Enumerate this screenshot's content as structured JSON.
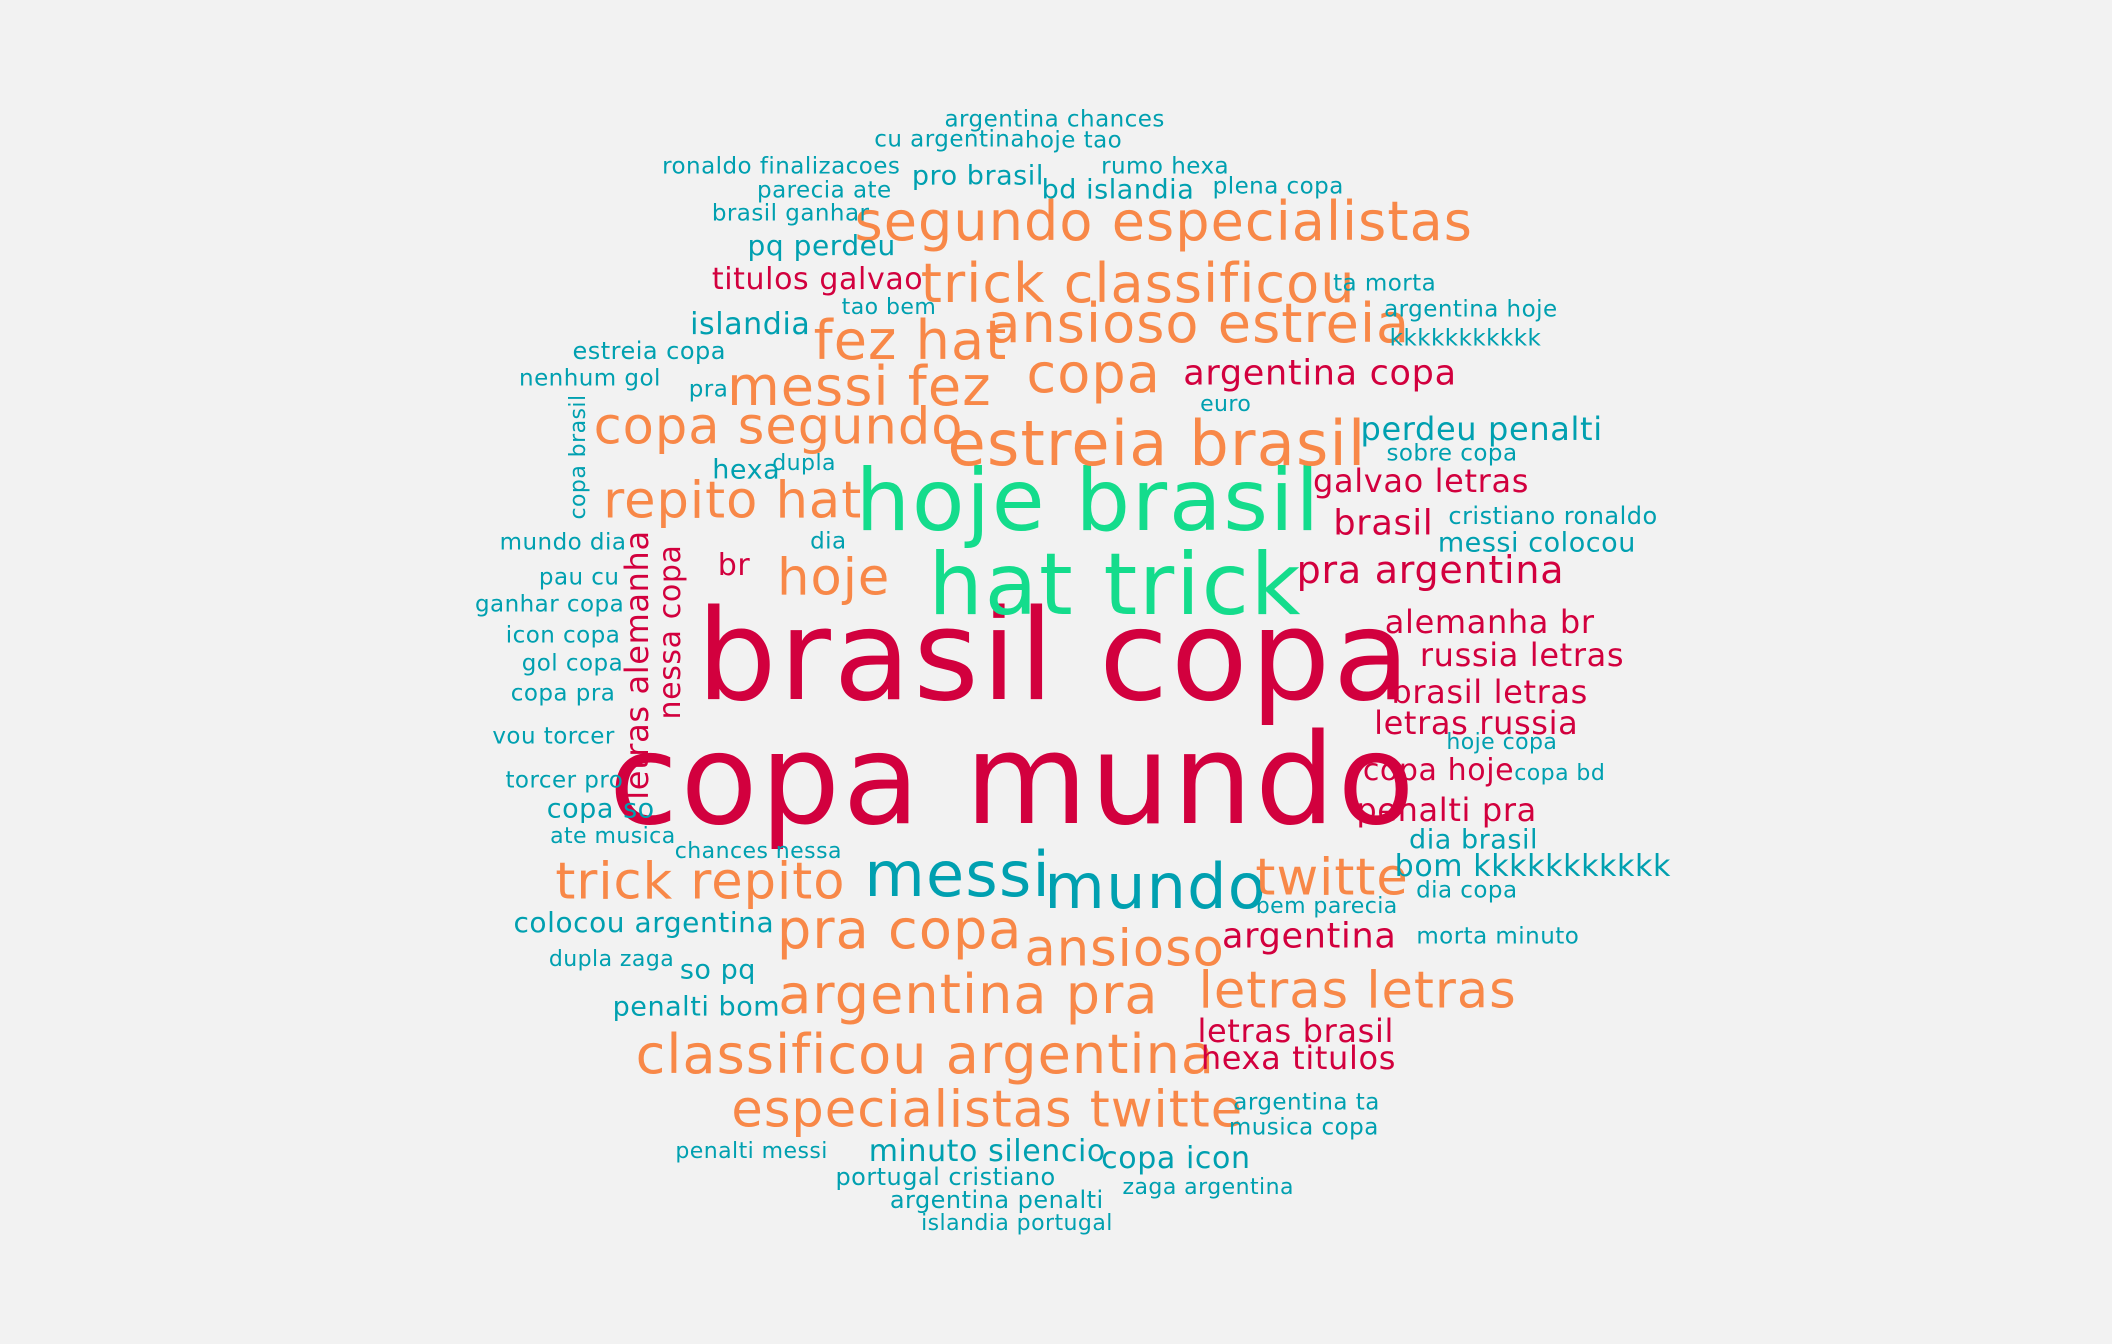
{
  "palette": {
    "green": "#14dc8c",
    "orange": "#f88848",
    "crimson": "#d2003e",
    "teal": "#00a0b0",
    "background": "#f2f2f2"
  },
  "words": [
    {
      "text": "brasil copa",
      "color": "crimson"
    },
    {
      "text": "copa mundo",
      "color": "crimson"
    },
    {
      "text": "hoje brasil",
      "color": "green"
    },
    {
      "text": "hat trick",
      "color": "green"
    },
    {
      "text": "estreia brasil",
      "color": "orange"
    },
    {
      "text": "segundo especialistas",
      "color": "orange"
    },
    {
      "text": "trick classificou",
      "color": "orange"
    },
    {
      "text": "ansioso estreia",
      "color": "orange"
    },
    {
      "text": "fez hat",
      "color": "orange"
    },
    {
      "text": "copa",
      "color": "orange"
    },
    {
      "text": "messi fez",
      "color": "orange"
    },
    {
      "text": "copa segundo",
      "color": "orange"
    },
    {
      "text": "repito hat",
      "color": "orange"
    },
    {
      "text": "hoje",
      "color": "orange"
    },
    {
      "text": "messi",
      "color": "teal"
    },
    {
      "text": "mundo",
      "color": "teal"
    },
    {
      "text": "trick repito",
      "color": "orange"
    },
    {
      "text": "twitte",
      "color": "orange"
    },
    {
      "text": "pra copa",
      "color": "orange"
    },
    {
      "text": "ansioso",
      "color": "orange"
    },
    {
      "text": "argentina pra",
      "color": "orange"
    },
    {
      "text": "letras letras",
      "color": "orange"
    },
    {
      "text": "classificou argentina",
      "color": "orange"
    },
    {
      "text": "especialistas twitte",
      "color": "orange"
    },
    {
      "text": "argentina chances",
      "color": "teal"
    },
    {
      "text": "cu argentina",
      "color": "teal"
    },
    {
      "text": "hoje tao",
      "color": "teal"
    },
    {
      "text": "ronaldo finalizacoes",
      "color": "teal"
    },
    {
      "text": "pro brasil",
      "color": "teal"
    },
    {
      "text": "rumo hexa",
      "color": "teal"
    },
    {
      "text": "parecia ate",
      "color": "teal"
    },
    {
      "text": "bd islandia",
      "color": "teal"
    },
    {
      "text": "plena copa",
      "color": "teal"
    },
    {
      "text": "brasil ganhar",
      "color": "teal"
    },
    {
      "text": "pq perdeu",
      "color": "teal"
    },
    {
      "text": "titulos galvao",
      "color": "crimson"
    },
    {
      "text": "ta morta",
      "color": "teal"
    },
    {
      "text": "tao bem",
      "color": "teal"
    },
    {
      "text": "argentina hoje",
      "color": "teal"
    },
    {
      "text": "islandia",
      "color": "teal"
    },
    {
      "text": "kkkkkkkkkkk",
      "color": "teal"
    },
    {
      "text": "estreia copa",
      "color": "teal"
    },
    {
      "text": "argentina copa",
      "color": "crimson"
    },
    {
      "text": "nenhum gol",
      "color": "teal"
    },
    {
      "text": "pra",
      "color": "teal"
    },
    {
      "text": "euro",
      "color": "teal"
    },
    {
      "text": "perdeu penalti",
      "color": "teal"
    },
    {
      "text": "sobre copa",
      "color": "teal"
    },
    {
      "text": "hexa",
      "color": "teal"
    },
    {
      "text": "dupla",
      "color": "teal"
    },
    {
      "text": "galvao letras",
      "color": "crimson"
    },
    {
      "text": "brasil",
      "color": "crimson"
    },
    {
      "text": "cristiano ronaldo",
      "color": "teal"
    },
    {
      "text": "messi colocou",
      "color": "teal"
    },
    {
      "text": "mundo dia",
      "color": "teal"
    },
    {
      "text": "dia",
      "color": "teal"
    },
    {
      "text": "br",
      "color": "crimson"
    },
    {
      "text": "pra argentina",
      "color": "crimson"
    },
    {
      "text": "pau cu",
      "color": "teal"
    },
    {
      "text": "ganhar copa",
      "color": "teal"
    },
    {
      "text": "alemanha br",
      "color": "crimson"
    },
    {
      "text": "icon copa",
      "color": "teal"
    },
    {
      "text": "russia letras",
      "color": "crimson"
    },
    {
      "text": "gol copa",
      "color": "teal"
    },
    {
      "text": "copa pra",
      "color": "teal"
    },
    {
      "text": "brasil letras",
      "color": "crimson"
    },
    {
      "text": "letras russia",
      "color": "crimson"
    },
    {
      "text": "vou torcer",
      "color": "teal"
    },
    {
      "text": "hoje copa",
      "color": "teal"
    },
    {
      "text": "torcer pro",
      "color": "teal"
    },
    {
      "text": "copa hoje",
      "color": "crimson"
    },
    {
      "text": "copa bd",
      "color": "teal"
    },
    {
      "text": "copa so",
      "color": "teal"
    },
    {
      "text": "penalti pra",
      "color": "crimson"
    },
    {
      "text": "ate musica",
      "color": "teal"
    },
    {
      "text": "chances nessa",
      "color": "teal"
    },
    {
      "text": "dia brasil",
      "color": "teal"
    },
    {
      "text": "bom kkkkkkkkkkk",
      "color": "teal"
    },
    {
      "text": "dia copa",
      "color": "teal"
    },
    {
      "text": "colocou argentina",
      "color": "teal"
    },
    {
      "text": "bem parecia",
      "color": "teal"
    },
    {
      "text": "argentina",
      "color": "crimson"
    },
    {
      "text": "morta minuto",
      "color": "teal"
    },
    {
      "text": "dupla zaga",
      "color": "teal"
    },
    {
      "text": "so pq",
      "color": "teal"
    },
    {
      "text": "penalti bom",
      "color": "teal"
    },
    {
      "text": "letras brasil",
      "color": "crimson"
    },
    {
      "text": "hexa titulos",
      "color": "crimson"
    },
    {
      "text": "argentina ta",
      "color": "teal"
    },
    {
      "text": "musica copa",
      "color": "teal"
    },
    {
      "text": "penalti messi",
      "color": "teal"
    },
    {
      "text": "minuto silencio",
      "color": "teal"
    },
    {
      "text": "copa icon",
      "color": "teal"
    },
    {
      "text": "portugal cristiano",
      "color": "teal"
    },
    {
      "text": "zaga argentina",
      "color": "teal"
    },
    {
      "text": "argentina penalti",
      "color": "teal"
    },
    {
      "text": "islandia portugal",
      "color": "teal"
    },
    {
      "text": "copa brasil",
      "color": "teal"
    },
    {
      "text": "letras alemanha",
      "color": "crimson"
    },
    {
      "text": "nessa copa",
      "color": "crimson"
    }
  ]
}
